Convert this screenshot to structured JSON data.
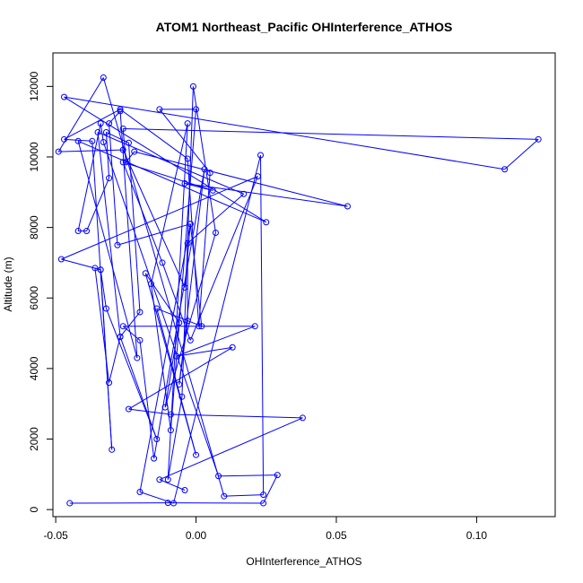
{
  "chart_data": {
    "type": "line",
    "title": "ATOM1 Northeast_Pacific OHInterference_ATHOS",
    "xlabel": "OHInterference_ATHOS",
    "ylabel": "Altitude (m)",
    "xlim": [
      -0.051,
      0.128
    ],
    "ylim": [
      -200,
      12950
    ],
    "x_ticks": [
      -0.05,
      0.0,
      0.05,
      0.1
    ],
    "x_tick_labels": [
      "-0.05",
      "0.00",
      "0.05",
      "0.10"
    ],
    "y_ticks": [
      0,
      2000,
      4000,
      6000,
      8000,
      10000,
      12000
    ],
    "y_tick_labels": [
      "0",
      "2000",
      "4000",
      "6000",
      "8000",
      "10000",
      "12000"
    ],
    "grid": false,
    "series": [
      {
        "color": "#0000ff",
        "marker": "open-circle",
        "x": [
          -0.045,
          -0.01,
          0.024,
          0.029,
          0.008,
          -0.033,
          -0.034,
          -0.042,
          -0.039,
          -0.031,
          -0.032,
          -0.024,
          -0.02,
          -0.027,
          -0.031,
          -0.036,
          -0.034,
          -0.03,
          -0.037,
          -0.047,
          -0.027,
          -0.003,
          0.001,
          0.005,
          -0.013,
          0.0,
          -0.009,
          -0.016,
          -0.003,
          -0.01,
          -0.005,
          -0.001,
          0.007,
          -0.011,
          -0.006,
          -0.018,
          0.0,
          -0.014,
          0.002,
          -0.002,
          -0.004,
          -0.026,
          -0.049,
          -0.033,
          0.01,
          0.024,
          0.023,
          -0.008,
          -0.02,
          -0.002,
          -0.028,
          -0.031,
          -0.027,
          -0.021,
          -0.042,
          0.025,
          -0.047,
          0.11,
          0.122,
          -0.026,
          -0.025,
          -0.022,
          0.054,
          -0.004,
          0.006,
          -0.026,
          -0.012,
          -0.002,
          0.022,
          -0.048,
          -0.034,
          -0.032,
          -0.014,
          -0.027,
          -0.035,
          0.017,
          -0.003,
          -0.003,
          -0.006,
          0.003,
          -0.015,
          -0.02,
          -0.026,
          0.021,
          -0.007,
          0.013,
          -0.024,
          -0.009,
          0.038,
          -0.013,
          -0.004
        ],
        "y": [
          180,
          190,
          180,
          980,
          950,
          10420,
          10950,
          7900,
          7900,
          9400,
          10700,
          10400,
          5600,
          4900,
          3600,
          6850,
          6800,
          1700,
          10450,
          10500,
          11350,
          9950,
          5200,
          9550,
          11350,
          11350,
          2250,
          6400,
          10950,
          850,
          3200,
          12000,
          7850,
          2900,
          5300,
          6700,
          1550,
          5700,
          5200,
          8100,
          6300,
          10200,
          10150,
          12250,
          380,
          420,
          10050,
          180,
          500,
          8100,
          7500,
          10950,
          11300,
          4300,
          10450,
          8150,
          11700,
          9650,
          10500,
          10800,
          9850,
          10150,
          8600,
          9250,
          9050,
          9850,
          7000,
          4800,
          9450,
          7100,
          6800,
          5700,
          2000,
          4900,
          10700,
          8950,
          7550,
          5350,
          3550,
          9650,
          1450,
          4800,
          5200,
          5200,
          4350,
          4600,
          2850,
          2700,
          2600,
          850,
          550
        ]
      }
    ]
  }
}
